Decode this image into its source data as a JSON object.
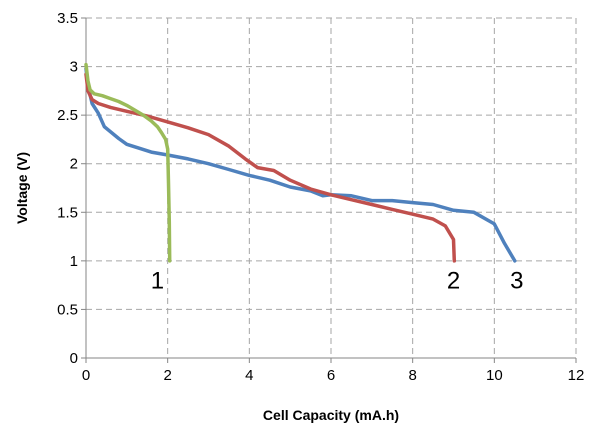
{
  "chart_data": {
    "type": "line",
    "xlabel": "Cell Capacity  (mA.h)",
    "ylabel": "Voltage (V)",
    "xlim": [
      0,
      12
    ],
    "ylim": [
      0,
      3.5
    ],
    "xticks": [
      "0",
      "2",
      "4",
      "6",
      "8",
      "10",
      "12"
    ],
    "yticks": [
      "0",
      "0.5",
      "1",
      "1.5",
      "2",
      "2.5",
      "3",
      "3.5"
    ],
    "grid": "horizontal dashed",
    "series": [
      {
        "name": "1",
        "color": "#9bbb59",
        "values": [
          [
            0.0,
            3.02
          ],
          [
            0.05,
            2.85
          ],
          [
            0.1,
            2.76
          ],
          [
            0.2,
            2.72
          ],
          [
            0.4,
            2.7
          ],
          [
            0.6,
            2.67
          ],
          [
            0.8,
            2.64
          ],
          [
            1.0,
            2.6
          ],
          [
            1.2,
            2.55
          ],
          [
            1.4,
            2.5
          ],
          [
            1.6,
            2.44
          ],
          [
            1.75,
            2.38
          ],
          [
            1.85,
            2.32
          ],
          [
            1.95,
            2.25
          ],
          [
            2.0,
            2.15
          ],
          [
            2.02,
            1.8
          ],
          [
            2.04,
            1.4
          ],
          [
            2.05,
            1.0
          ]
        ],
        "label_position": [
          1.75,
          0.8
        ]
      },
      {
        "name": "2",
        "color": "#c0504d",
        "values": [
          [
            0.0,
            2.92
          ],
          [
            0.05,
            2.75
          ],
          [
            0.15,
            2.66
          ],
          [
            0.3,
            2.62
          ],
          [
            0.6,
            2.58
          ],
          [
            1.0,
            2.54
          ],
          [
            1.5,
            2.49
          ],
          [
            2.0,
            2.43
          ],
          [
            2.5,
            2.37
          ],
          [
            3.0,
            2.3
          ],
          [
            3.5,
            2.18
          ],
          [
            3.9,
            2.05
          ],
          [
            4.2,
            1.96
          ],
          [
            4.6,
            1.93
          ],
          [
            5.0,
            1.83
          ],
          [
            5.5,
            1.74
          ],
          [
            6.0,
            1.68
          ],
          [
            6.5,
            1.63
          ],
          [
            7.0,
            1.58
          ],
          [
            7.5,
            1.53
          ],
          [
            8.0,
            1.48
          ],
          [
            8.5,
            1.43
          ],
          [
            8.8,
            1.36
          ],
          [
            9.0,
            1.22
          ],
          [
            9.02,
            1.0
          ]
        ],
        "label_position": [
          9.0,
          0.8
        ]
      },
      {
        "name": "3",
        "color": "#4f81bd",
        "values": [
          [
            0.0,
            2.98
          ],
          [
            0.05,
            2.8
          ],
          [
            0.15,
            2.62
          ],
          [
            0.3,
            2.52
          ],
          [
            0.45,
            2.38
          ],
          [
            0.6,
            2.33
          ],
          [
            0.8,
            2.26
          ],
          [
            1.0,
            2.2
          ],
          [
            1.3,
            2.16
          ],
          [
            1.6,
            2.12
          ],
          [
            2.0,
            2.09
          ],
          [
            2.5,
            2.05
          ],
          [
            3.0,
            2.0
          ],
          [
            3.5,
            1.94
          ],
          [
            4.0,
            1.88
          ],
          [
            4.5,
            1.83
          ],
          [
            5.0,
            1.76
          ],
          [
            5.5,
            1.72
          ],
          [
            5.8,
            1.67
          ],
          [
            6.0,
            1.68
          ],
          [
            6.5,
            1.67
          ],
          [
            7.0,
            1.62
          ],
          [
            7.5,
            1.62
          ],
          [
            8.0,
            1.6
          ],
          [
            8.5,
            1.58
          ],
          [
            9.0,
            1.52
          ],
          [
            9.5,
            1.5
          ],
          [
            10.0,
            1.38
          ],
          [
            10.25,
            1.18
          ],
          [
            10.5,
            1.0
          ]
        ],
        "label_position": [
          10.55,
          0.8
        ]
      }
    ]
  }
}
